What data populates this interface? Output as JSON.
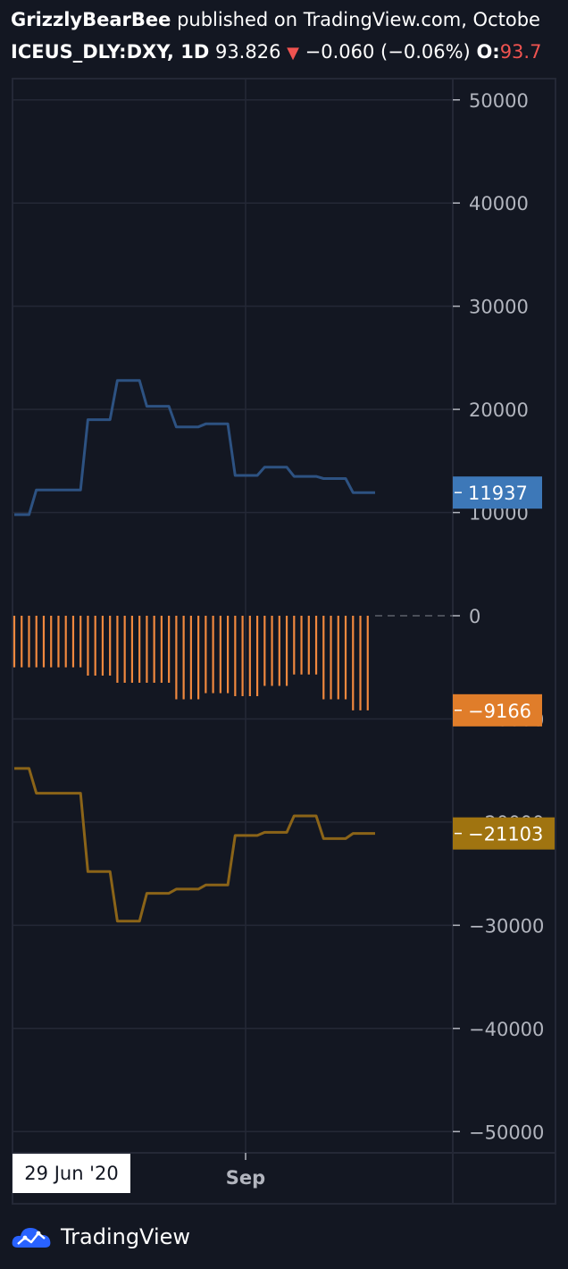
{
  "header": {
    "publisher": "GrizzlyBearBee",
    "published_text": " published on TradingView.com, Octobe",
    "symbol": "ICEUS_DLY:DXY, 1D",
    "price": "93.826",
    "change_arrow": "▼",
    "change": "−0.060 (−0.06%)",
    "open_label": "O:",
    "open_value": "93.7"
  },
  "time_axis": {
    "start_date": "29 Jun '20",
    "tick": "Sep"
  },
  "footer": {
    "brand": "TradingView",
    "logo_icon": "tradingview-cloud-icon"
  },
  "colors": {
    "background": "#131722",
    "grid": "#242836",
    "axis_text": "#b2b5be",
    "blue": "#2d5282",
    "orange": "#f0883e",
    "brown": "#8b6418",
    "blue_label": "#3d78b8",
    "orange_label": "#e07d2a",
    "brown_label": "#a07410"
  },
  "chart_data": {
    "type": "line",
    "x_index_range": [
      0,
      49
    ],
    "ylim": [
      -52000,
      52000
    ],
    "y_ticks": [
      {
        "value": 50000,
        "label": "50000"
      },
      {
        "value": 40000,
        "label": "40000"
      },
      {
        "value": 30000,
        "label": "30000"
      },
      {
        "value": 20000,
        "label": "20000"
      },
      {
        "value": 10000,
        "label": "10000"
      },
      {
        "value": 0,
        "label": "0"
      },
      {
        "value": -10000,
        "label": "−10000"
      },
      {
        "value": -20000,
        "label": "−20000"
      },
      {
        "value": -30000,
        "label": "−30000"
      },
      {
        "value": -40000,
        "label": "−40000"
      },
      {
        "value": -50000,
        "label": "−50000"
      }
    ],
    "series": [
      {
        "type": "line",
        "color_key": "blue",
        "last_label": "11937",
        "points": [
          [
            0,
            9800
          ],
          [
            2,
            9800
          ],
          [
            3,
            12200
          ],
          [
            9,
            12200
          ],
          [
            10,
            19000
          ],
          [
            13,
            19000
          ],
          [
            14,
            22800
          ],
          [
            17,
            22800
          ],
          [
            18,
            20300
          ],
          [
            21,
            20300
          ],
          [
            22,
            18300
          ],
          [
            25,
            18300
          ],
          [
            26,
            18600
          ],
          [
            29,
            18600
          ],
          [
            30,
            13600
          ],
          [
            33,
            13600
          ],
          [
            34,
            14400
          ],
          [
            37,
            14400
          ],
          [
            38,
            13500
          ],
          [
            41,
            13500
          ],
          [
            42,
            13300
          ],
          [
            45,
            13300
          ],
          [
            46,
            11937
          ],
          [
            49,
            11937
          ]
        ]
      },
      {
        "type": "histogram",
        "color_key": "orange",
        "last_label": "−9166",
        "points": [
          [
            0,
            -5000
          ],
          [
            1,
            -5000
          ],
          [
            2,
            -5000
          ],
          [
            3,
            -5000
          ],
          [
            4,
            -5000
          ],
          [
            5,
            -5000
          ],
          [
            6,
            -5000
          ],
          [
            7,
            -5000
          ],
          [
            8,
            -5000
          ],
          [
            9,
            -5000
          ],
          [
            10,
            -5800
          ],
          [
            11,
            -5800
          ],
          [
            12,
            -5800
          ],
          [
            13,
            -5800
          ],
          [
            14,
            -6500
          ],
          [
            15,
            -6500
          ],
          [
            16,
            -6500
          ],
          [
            17,
            -6500
          ],
          [
            18,
            -6500
          ],
          [
            19,
            -6500
          ],
          [
            20,
            -6500
          ],
          [
            21,
            -6500
          ],
          [
            22,
            -8100
          ],
          [
            23,
            -8100
          ],
          [
            24,
            -8100
          ],
          [
            25,
            -8100
          ],
          [
            26,
            -7500
          ],
          [
            27,
            -7500
          ],
          [
            28,
            -7500
          ],
          [
            29,
            -7500
          ],
          [
            30,
            -7800
          ],
          [
            31,
            -7800
          ],
          [
            32,
            -7800
          ],
          [
            33,
            -7800
          ],
          [
            34,
            -6800
          ],
          [
            35,
            -6800
          ],
          [
            36,
            -6800
          ],
          [
            37,
            -6800
          ],
          [
            38,
            -5700
          ],
          [
            39,
            -5700
          ],
          [
            40,
            -5700
          ],
          [
            41,
            -5700
          ],
          [
            42,
            -8100
          ],
          [
            43,
            -8100
          ],
          [
            44,
            -8100
          ],
          [
            45,
            -8100
          ],
          [
            46,
            -9166
          ],
          [
            47,
            -9166
          ],
          [
            48,
            -9166
          ]
        ]
      },
      {
        "type": "line",
        "color_key": "brown",
        "last_label": "−21103",
        "points": [
          [
            0,
            -14800
          ],
          [
            2,
            -14800
          ],
          [
            3,
            -17200
          ],
          [
            9,
            -17200
          ],
          [
            10,
            -24800
          ],
          [
            13,
            -24800
          ],
          [
            14,
            -29600
          ],
          [
            17,
            -29600
          ],
          [
            18,
            -26900
          ],
          [
            21,
            -26900
          ],
          [
            22,
            -26500
          ],
          [
            25,
            -26500
          ],
          [
            26,
            -26100
          ],
          [
            29,
            -26100
          ],
          [
            30,
            -21300
          ],
          [
            33,
            -21300
          ],
          [
            34,
            -21000
          ],
          [
            37,
            -21000
          ],
          [
            38,
            -19400
          ],
          [
            41,
            -19400
          ],
          [
            42,
            -21600
          ],
          [
            45,
            -21600
          ],
          [
            46,
            -21103
          ],
          [
            49,
            -21103
          ]
        ]
      }
    ]
  }
}
